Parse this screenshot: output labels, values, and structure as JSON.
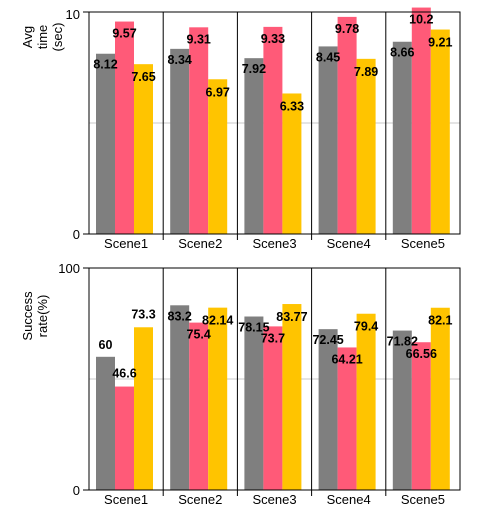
{
  "chart_data": [
    {
      "type": "bar",
      "ylabel_lines": [
        "Avg",
        "time",
        "(sec)"
      ],
      "ylim": [
        0,
        10.0
      ],
      "yticks": [
        0,
        10
      ],
      "ytick_labels": [
        "0",
        "10"
      ],
      "gridlines": [
        5
      ],
      "categories": [
        "Scene1",
        "Scene2",
        "Scene3",
        "Scene4",
        "Scene5"
      ],
      "series": [
        {
          "values": [
            8.12,
            8.34,
            7.92,
            8.45,
            8.66
          ],
          "labels": [
            "8.12",
            "8.34",
            "7.92",
            "8.45",
            "8.66"
          ],
          "color": "#7f7f7f"
        },
        {
          "values": [
            9.57,
            9.31,
            9.33,
            9.78,
            10.2
          ],
          "labels": [
            "9.57",
            "9.31",
            "9.33",
            "9.78",
            "10.2"
          ],
          "color": "#ff5a78"
        },
        {
          "values": [
            7.65,
            6.97,
            6.33,
            7.89,
            9.21
          ],
          "labels": [
            "7.65",
            "6.97",
            "6.33",
            "7.89",
            "9.21"
          ],
          "color": "#ffc400"
        }
      ]
    },
    {
      "type": "bar",
      "ylabel_lines": [
        "Success",
        "rate(%)"
      ],
      "ylim": [
        0,
        100
      ],
      "yticks": [
        0,
        100
      ],
      "ytick_labels": [
        "0",
        "100"
      ],
      "gridlines": [
        50
      ],
      "categories": [
        "Scene1",
        "Scene2",
        "Scene3",
        "Scene4",
        "Scene5"
      ],
      "series": [
        {
          "values": [
            60,
            83.2,
            78.15,
            72.45,
            71.82
          ],
          "labels": [
            "60",
            "83.2",
            "78.15",
            "72.45",
            "71.82"
          ],
          "color": "#7f7f7f"
        },
        {
          "values": [
            46.6,
            75.4,
            73.7,
            64.21,
            66.56
          ],
          "labels": [
            "46.6",
            "75.4",
            "73.7",
            "64.21",
            "66.56"
          ],
          "color": "#ff5a78"
        },
        {
          "values": [
            73.3,
            82.14,
            83.77,
            79.4,
            82.1
          ],
          "labels": [
            "73.3",
            "82.14",
            "83.77",
            "79.4",
            "82.1"
          ],
          "color": "#ffc400"
        }
      ]
    }
  ]
}
